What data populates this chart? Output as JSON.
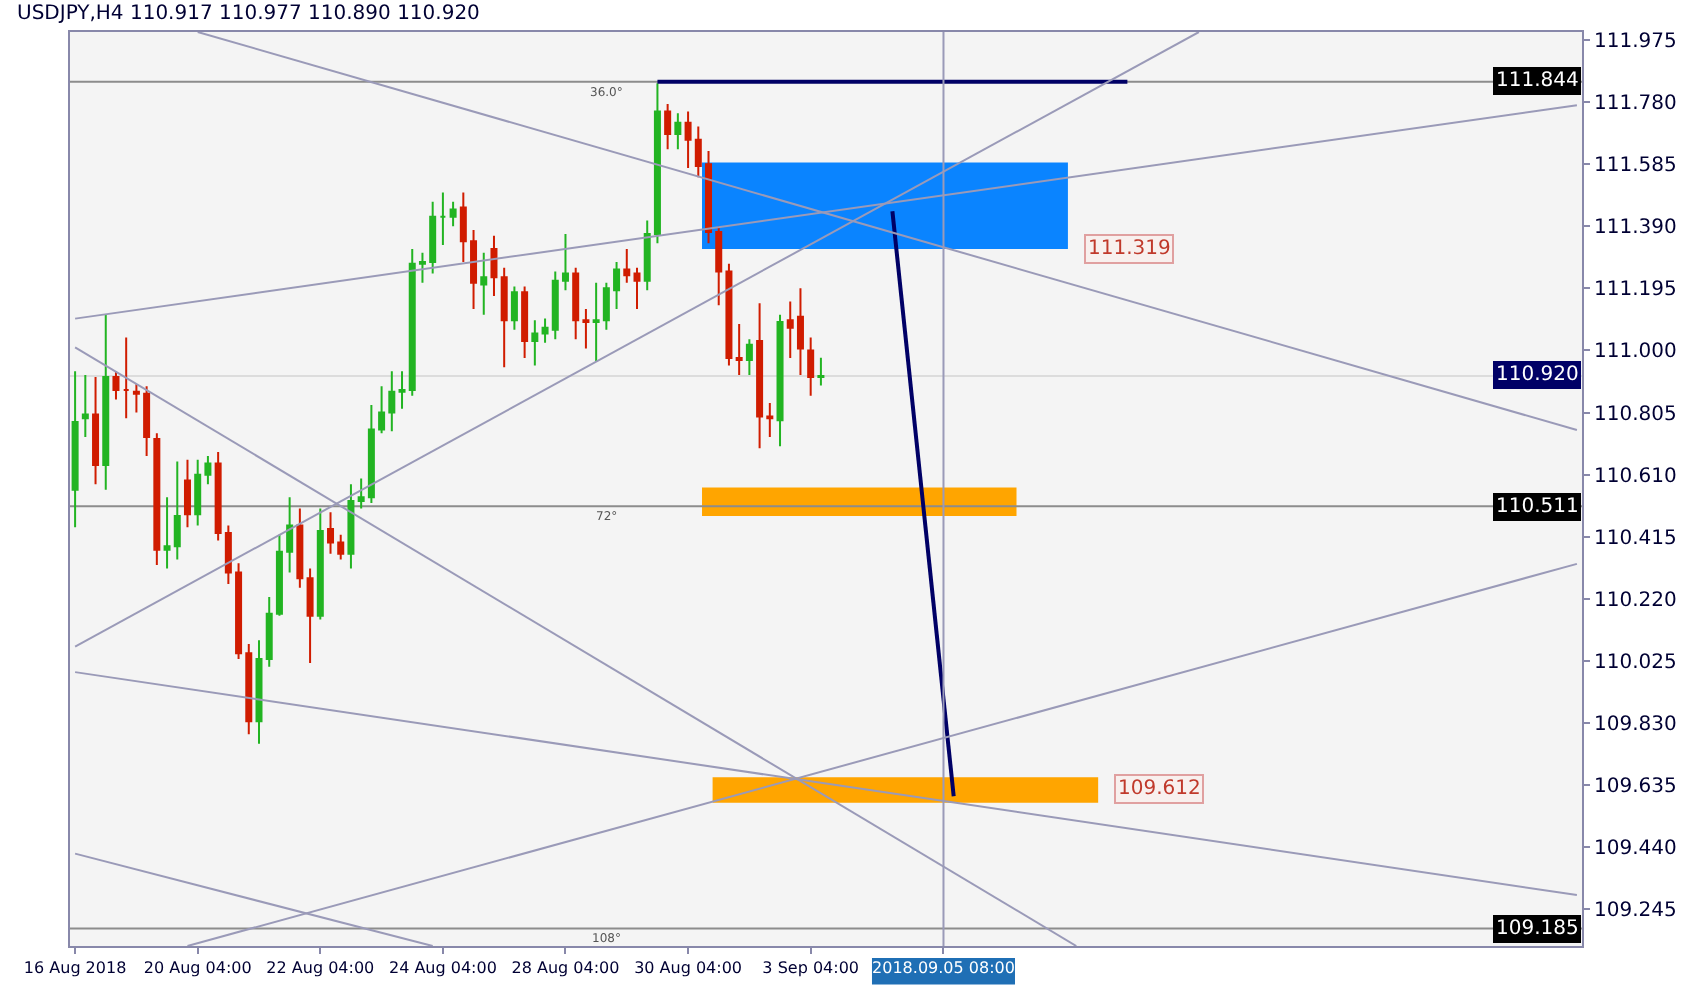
{
  "chart_data": {
    "type": "candlestick",
    "title": "USDJPY,H4 110.917 110.977 110.890 110.920",
    "categories": [
      "16 Aug 2018",
      null,
      null,
      null,
      null,
      null,
      null,
      null,
      null,
      null,
      null,
      null,
      "20 Aug 04:00",
      null,
      null,
      null,
      null,
      null,
      null,
      null,
      null,
      null,
      null,
      null,
      "22 Aug 04:00",
      null,
      null,
      null,
      null,
      null,
      null,
      null,
      null,
      null,
      null,
      null,
      "24 Aug 04:00",
      null,
      null,
      null,
      null,
      null,
      null,
      null,
      null,
      null,
      null,
      null,
      "28 Aug 04:00",
      null,
      null,
      null,
      null,
      null,
      null,
      null,
      null,
      null,
      null,
      null,
      "30 Aug 04:00",
      null,
      null,
      null,
      null,
      null,
      null,
      null,
      null,
      null,
      null,
      null,
      "3 Sep 04:00",
      null,
      null,
      null,
      null,
      null,
      null,
      null,
      null,
      null,
      null,
      null,
      null,
      "2018.09.05 08:00",
      null,
      null,
      null,
      null,
      null,
      null,
      null,
      null,
      null,
      null,
      null,
      null,
      null,
      null,
      null,
      null,
      null,
      null,
      null,
      null,
      null,
      null,
      null,
      null,
      null,
      null,
      null,
      null,
      null,
      null,
      null,
      null,
      null,
      null,
      null,
      null,
      null,
      null,
      null,
      null,
      null,
      null,
      null,
      null,
      null,
      null,
      null,
      null,
      null,
      null,
      null,
      null,
      null,
      null,
      null,
      null,
      null,
      null,
      null,
      null,
      null,
      null
    ],
    "ohlc": [
      [
        110.563,
        110.935,
        110.445,
        110.775
      ],
      [
        110.787,
        110.923,
        110.728,
        110.799
      ],
      [
        110.799,
        110.917,
        110.58,
        110.64
      ],
      [
        110.64,
        111.112,
        110.563,
        110.917
      ],
      [
        110.917,
        110.935,
        110.846,
        110.876
      ],
      [
        110.876,
        111.041,
        110.787,
        110.876
      ],
      [
        110.87,
        110.894,
        110.805,
        110.864
      ],
      [
        110.864,
        110.888,
        110.669,
        110.728
      ],
      [
        110.722,
        110.74,
        110.326,
        110.374
      ],
      [
        110.374,
        110.539,
        110.315,
        110.385
      ],
      [
        110.385,
        110.651,
        110.344,
        110.48
      ],
      [
        110.592,
        110.657,
        110.445,
        110.486
      ],
      [
        110.486,
        110.657,
        110.45,
        110.61
      ],
      [
        110.61,
        110.669,
        110.58,
        110.645
      ],
      [
        110.645,
        110.681,
        110.403,
        110.427
      ],
      [
        110.427,
        110.45,
        110.267,
        110.303
      ],
      [
        110.303,
        110.332,
        110.031,
        110.049
      ],
      [
        110.049,
        110.078,
        109.795,
        109.836
      ],
      [
        109.836,
        110.09,
        109.765,
        110.031
      ],
      [
        110.031,
        110.226,
        110.007,
        110.173
      ],
      [
        110.173,
        110.421,
        110.167,
        110.368
      ],
      [
        110.368,
        110.539,
        110.303,
        110.45
      ],
      [
        110.45,
        110.504,
        110.255,
        110.285
      ],
      [
        110.285,
        110.315,
        110.019,
        110.167
      ],
      [
        110.167,
        110.504,
        110.155,
        110.433
      ],
      [
        110.439,
        110.492,
        110.362,
        110.397
      ],
      [
        110.397,
        110.421,
        110.344,
        110.362
      ],
      [
        110.362,
        110.58,
        110.315,
        110.527
      ],
      [
        110.527,
        110.598,
        110.504,
        110.539
      ],
      [
        110.539,
        110.829,
        110.521,
        110.752
      ],
      [
        110.752,
        110.888,
        110.74,
        110.805
      ],
      [
        110.805,
        110.935,
        110.746,
        110.87
      ],
      [
        110.87,
        110.935,
        110.817,
        110.876
      ],
      [
        110.876,
        111.319,
        110.858,
        111.272
      ],
      [
        111.272,
        111.307,
        111.213,
        111.278
      ],
      [
        111.278,
        111.467,
        111.242,
        111.42
      ],
      [
        111.42,
        111.496,
        111.331,
        111.42
      ],
      [
        111.42,
        111.467,
        111.39,
        111.443
      ],
      [
        111.449,
        111.496,
        111.278,
        111.343
      ],
      [
        111.343,
        111.378,
        111.13,
        111.213
      ],
      [
        111.207,
        111.307,
        111.112,
        111.23
      ],
      [
        111.319,
        111.36,
        111.171,
        111.23
      ],
      [
        111.23,
        111.26,
        110.947,
        111.095
      ],
      [
        111.095,
        111.201,
        111.065,
        111.183
      ],
      [
        111.183,
        111.201,
        110.976,
        111.03
      ],
      [
        111.03,
        111.095,
        110.953,
        111.053
      ],
      [
        111.053,
        111.1,
        111.024,
        111.071
      ],
      [
        111.065,
        111.248,
        111.035,
        111.219
      ],
      [
        111.219,
        111.366,
        111.189,
        111.242
      ],
      [
        111.242,
        111.26,
        111.035,
        111.095
      ],
      [
        111.095,
        111.13,
        111.006,
        111.089
      ],
      [
        111.089,
        111.213,
        110.965,
        111.095
      ],
      [
        111.095,
        111.213,
        111.065,
        111.195
      ],
      [
        111.189,
        111.278,
        111.13,
        111.254
      ],
      [
        111.254,
        111.319,
        111.213,
        111.236
      ],
      [
        111.242,
        111.26,
        111.13,
        111.219
      ],
      [
        111.219,
        111.408,
        111.189,
        111.366
      ],
      [
        111.366,
        111.839,
        111.337,
        111.75
      ],
      [
        111.75,
        111.774,
        111.632,
        111.68
      ],
      [
        111.68,
        111.745,
        111.632,
        111.715
      ],
      [
        111.715,
        111.75,
        111.573,
        111.662
      ],
      [
        111.662,
        111.703,
        111.544,
        111.579
      ],
      [
        111.585,
        111.626,
        111.337,
        111.372
      ],
      [
        111.372,
        111.39,
        111.142,
        111.248
      ],
      [
        111.248,
        111.272,
        110.953,
        110.976
      ],
      [
        110.976,
        111.083,
        110.923,
        110.97
      ],
      [
        110.97,
        111.035,
        110.923,
        111.018
      ],
      [
        111.03,
        111.148,
        110.693,
        110.793
      ],
      [
        110.793,
        110.835,
        110.728,
        110.787
      ],
      [
        110.781,
        111.112,
        110.699,
        111.089
      ],
      [
        111.095,
        111.154,
        110.976,
        111.071
      ],
      [
        111.106,
        111.195,
        110.923,
        111.006
      ],
      [
        111.0,
        111.041,
        110.858,
        110.917
      ],
      [
        110.917,
        110.977,
        110.89,
        110.92
      ],
      null,
      null,
      null,
      null,
      null,
      null,
      null,
      null,
      null,
      null,
      null,
      null,
      null,
      null,
      null,
      null,
      null,
      null,
      null,
      null,
      null,
      null,
      null,
      null,
      null,
      null,
      null,
      null,
      null,
      null,
      null,
      null,
      null,
      null,
      null,
      null,
      null,
      null,
      null,
      null,
      null,
      null,
      null,
      null,
      null,
      null,
      null,
      null,
      null,
      null,
      null,
      null,
      null,
      null,
      null,
      null,
      null,
      null,
      null,
      null,
      null,
      null,
      null,
      null,
      null,
      null,
      null,
      null,
      null,
      null,
      null,
      null,
      null,
      null
    ],
    "colors": [
      "#22b422",
      "#22b422",
      "#d01c00",
      "#22b422",
      "#d01c00",
      "#d01c00",
      "#d01c00",
      "#d01c00",
      "#d01c00",
      "#22b422",
      "#22b422",
      "#d01c00",
      "#22b422",
      "#22b422",
      "#d01c00",
      "#d01c00",
      "#d01c00",
      "#d01c00",
      "#22b422",
      "#22b422",
      "#22b422",
      "#22b422",
      "#d01c00",
      "#d01c00",
      "#22b422",
      "#d01c00",
      "#d01c00",
      "#22b422",
      "#22b422",
      "#22b422",
      "#22b422",
      "#22b422",
      "#22b422",
      "#22b422",
      "#22b422",
      "#22b422",
      "#22b422",
      "#22b422",
      "#d01c00",
      "#d01c00",
      "#22b422",
      "#d01c00",
      "#d01c00",
      "#22b422",
      "#d01c00",
      "#22b422",
      "#22b422",
      "#22b422",
      "#22b422",
      "#d01c00",
      "#d01c00",
      "#22b422",
      "#22b422",
      "#22b422",
      "#d01c00",
      "#d01c00",
      "#22b422",
      "#22b422",
      "#d01c00",
      "#22b422",
      "#d01c00",
      "#d01c00",
      "#d01c00",
      "#d01c00",
      "#d01c00",
      "#d01c00",
      "#22b422",
      "#d01c00",
      "#d01c00",
      "#22b422",
      "#d01c00",
      "#d01c00",
      "#d01c00",
      "#22b422",
      null,
      null,
      null,
      null,
      null,
      null,
      null,
      null,
      null,
      null,
      null,
      null,
      null,
      null,
      null,
      null,
      null,
      null,
      null,
      null,
      null,
      null,
      null,
      null,
      null,
      null,
      null,
      null,
      null,
      null,
      null,
      null,
      null,
      null,
      null,
      null,
      null,
      null,
      null,
      null,
      null,
      null,
      null,
      null,
      null,
      null,
      null,
      null,
      null,
      null,
      null,
      null,
      null,
      null,
      null,
      null,
      null,
      null,
      null,
      null,
      null,
      null,
      null,
      null,
      null,
      null,
      null,
      null,
      null,
      null,
      null,
      null,
      null,
      null
    ],
    "series": [
      {
        "type": "line",
        "color": "#000066",
        "values": [
          null,
          null,
          null,
          null,
          null,
          null,
          null,
          null,
          null,
          null,
          null,
          null,
          null,
          null,
          null,
          null,
          null,
          null,
          null,
          null,
          null,
          null,
          null,
          null,
          null,
          null,
          null,
          null,
          null,
          null,
          null,
          null,
          null,
          null,
          null,
          null,
          null,
          null,
          null,
          null,
          null,
          null,
          null,
          null,
          null,
          null,
          null,
          null,
          null,
          null,
          null,
          null,
          null,
          null,
          null,
          null,
          null,
          null,
          null,
          null,
          null,
          null,
          null,
          null,
          null,
          null,
          null,
          null,
          null,
          null,
          null,
          null,
          null,
          null,
          null,
          null,
          null,
          null,
          null,
          null,
          111.437,
          null,
          null,
          null,
          null,
          null,
          109.6,
          null,
          null,
          null,
          null,
          null,
          null,
          null,
          null,
          null,
          null,
          null,
          null,
          null,
          null,
          null,
          null,
          null,
          null,
          null,
          null,
          null,
          null,
          null,
          null,
          null,
          null,
          null,
          null,
          null,
          null,
          null,
          null,
          null,
          null,
          null,
          null,
          null,
          null,
          null,
          null,
          null,
          null,
          null,
          null,
          null,
          null,
          null,
          null,
          null,
          null,
          null,
          null,
          null,
          null,
          null,
          null,
          null,
          null,
          null,
          null,
          null
        ]
      },
      {
        "type": "line",
        "color": "#000066",
        "values": [
          null,
          null,
          null,
          null,
          null,
          null,
          null,
          null,
          null,
          null,
          null,
          null,
          null,
          null,
          null,
          null,
          null,
          null,
          null,
          null,
          null,
          null,
          null,
          null,
          null,
          null,
          null,
          null,
          null,
          null,
          null,
          null,
          null,
          null,
          null,
          null,
          null,
          null,
          null,
          null,
          null,
          null,
          null,
          null,
          null,
          null,
          null,
          null,
          null,
          null,
          null,
          null,
          null,
          null,
          null,
          null,
          null,
          111.844,
          null,
          null,
          null,
          null,
          null,
          null,
          null,
          null,
          null,
          null,
          null,
          null,
          null,
          null,
          null,
          null,
          null,
          null,
          null,
          null,
          null,
          null,
          null,
          null,
          null,
          null,
          null,
          null,
          null,
          null,
          null,
          null,
          null,
          null,
          null,
          null,
          null,
          null,
          null,
          null,
          null,
          null,
          null,
          null,
          null,
          111.844,
          null,
          null,
          null,
          null,
          null,
          null,
          null,
          null,
          null,
          null,
          null,
          null,
          null,
          null,
          null,
          null,
          null,
          null,
          null,
          null,
          null,
          null,
          null,
          null,
          null,
          null,
          null,
          null,
          null,
          null,
          null,
          null,
          null,
          null,
          null,
          null,
          null,
          null,
          null,
          null,
          null,
          null,
          null,
          null
        ]
      },
      {
        "type": "line",
        "color": "#9a9ab8",
        "values": [
          111.1,
          null,
          null,
          null,
          null,
          null,
          null,
          null,
          null,
          null,
          null,
          null,
          null,
          null,
          null,
          null,
          null,
          null,
          null,
          null,
          null,
          null,
          null,
          null,
          null,
          null,
          null,
          null,
          null,
          null,
          null,
          null,
          null,
          null,
          null,
          null,
          null,
          null,
          null,
          null,
          null,
          null,
          null,
          null,
          null,
          null,
          null,
          null,
          null,
          null,
          null,
          null,
          null,
          null,
          null,
          null,
          null,
          null,
          null,
          null,
          null,
          null,
          null,
          null,
          null,
          null,
          null,
          null,
          null,
          null,
          null,
          null,
          null,
          null,
          null,
          null,
          null,
          null,
          null,
          null,
          null,
          null,
          null,
          null,
          null,
          null,
          null,
          null,
          null,
          null,
          null,
          null,
          null,
          null,
          null,
          null,
          null,
          null,
          null,
          null,
          null,
          null,
          null,
          null,
          null,
          null,
          null,
          null,
          null,
          null,
          null,
          null,
          null,
          null,
          null,
          null,
          null,
          null,
          null,
          null,
          null,
          null,
          null,
          null,
          null,
          null,
          null,
          null,
          null,
          null,
          null,
          null,
          null,
          null,
          null,
          null,
          null,
          null,
          null,
          null,
          null,
          null,
          null,
          null,
          null,
          null,
          null,
          111.77
        ]
      },
      {
        "type": "line",
        "color": "#9a9ab8",
        "values": [
          null,
          null,
          null,
          null,
          null,
          null,
          null,
          null,
          null,
          null,
          null,
          null,
          112.0,
          null,
          null,
          null,
          null,
          null,
          null,
          null,
          null,
          null,
          null,
          null,
          null,
          null,
          null,
          null,
          null,
          null,
          null,
          null,
          null,
          null,
          null,
          null,
          null,
          null,
          null,
          null,
          null,
          null,
          null,
          null,
          null,
          null,
          null,
          null,
          null,
          null,
          null,
          null,
          null,
          null,
          null,
          null,
          null,
          null,
          null,
          null,
          null,
          null,
          null,
          null,
          null,
          null,
          null,
          null,
          null,
          null,
          null,
          null,
          null,
          null,
          null,
          null,
          null,
          null,
          null,
          null,
          null,
          null,
          null,
          null,
          null,
          null,
          null,
          null,
          null,
          null,
          null,
          null,
          null,
          null,
          null,
          null,
          null,
          null,
          null,
          null,
          null,
          null,
          null,
          null,
          null,
          null,
          null,
          null,
          null,
          null,
          null,
          null,
          null,
          null,
          null,
          null,
          null,
          null,
          null,
          null,
          null,
          null,
          null,
          null,
          null,
          null,
          null,
          null,
          null,
          null,
          null,
          null,
          null,
          null,
          null,
          null,
          null,
          null,
          null,
          null,
          null,
          null,
          null,
          null,
          null,
          null,
          null,
          110.75
        ]
      },
      {
        "type": "line",
        "color": "#9a9ab8",
        "values": [
          111.01,
          null,
          null,
          null,
          null,
          null,
          null,
          null,
          null,
          null,
          null,
          null,
          null,
          null,
          null,
          null,
          null,
          null,
          null,
          null,
          null,
          null,
          null,
          null,
          null,
          null,
          null,
          null,
          null,
          null,
          null,
          null,
          null,
          null,
          null,
          null,
          null,
          null,
          null,
          null,
          null,
          null,
          null,
          null,
          null,
          null,
          null,
          null,
          null,
          null,
          null,
          null,
          null,
          null,
          null,
          null,
          null,
          null,
          null,
          null,
          null,
          null,
          null,
          null,
          null,
          null,
          null,
          null,
          null,
          null,
          null,
          null,
          null,
          null,
          null,
          null,
          null,
          null,
          null,
          null,
          null,
          null,
          null,
          null,
          null,
          null,
          null,
          null,
          null,
          null,
          null,
          null,
          null,
          null,
          null,
          null,
          null,
          null,
          109.13,
          null,
          null,
          null,
          null,
          null,
          null,
          null,
          null,
          null,
          null,
          null,
          null,
          null,
          null,
          null,
          null,
          null,
          null,
          null,
          null,
          null,
          null,
          null,
          null,
          null,
          null,
          null,
          null,
          null,
          null,
          null,
          null,
          null,
          null,
          null,
          null,
          null,
          null,
          null,
          null,
          null,
          null,
          null,
          null,
          null,
          null,
          null,
          null,
          null
        ]
      },
      {
        "type": "line",
        "color": "#9a9ab8",
        "values": [
          110.07,
          null,
          null,
          null,
          null,
          null,
          null,
          null,
          null,
          null,
          null,
          null,
          null,
          null,
          null,
          null,
          null,
          null,
          null,
          null,
          null,
          null,
          null,
          null,
          null,
          null,
          null,
          null,
          null,
          null,
          null,
          null,
          null,
          null,
          null,
          null,
          null,
          null,
          null,
          null,
          null,
          null,
          null,
          null,
          null,
          null,
          null,
          null,
          null,
          null,
          null,
          null,
          null,
          null,
          null,
          null,
          null,
          null,
          null,
          null,
          null,
          null,
          null,
          null,
          null,
          null,
          null,
          null,
          null,
          null,
          null,
          null,
          null,
          null,
          null,
          null,
          null,
          null,
          null,
          null,
          null,
          null,
          null,
          null,
          null,
          null,
          null,
          null,
          null,
          null,
          null,
          null,
          null,
          null,
          null,
          null,
          null,
          null,
          null,
          null,
          null,
          null,
          null,
          null,
          null,
          null,
          null,
          null,
          null,
          null,
          112.0,
          null,
          null,
          null,
          null,
          null,
          null,
          null,
          null,
          null,
          null,
          null,
          null,
          null,
          null,
          null,
          null,
          null,
          null,
          null,
          null,
          null,
          null,
          null,
          null,
          null,
          null,
          null,
          null,
          null,
          null,
          null,
          null,
          null,
          null,
          null,
          null,
          null
        ]
      },
      {
        "type": "line",
        "color": "#9a9ab8",
        "values": [
          null,
          null,
          null,
          null,
          null,
          null,
          null,
          null,
          null,
          null,
          null,
          109.13,
          null,
          null,
          null,
          null,
          null,
          null,
          null,
          null,
          null,
          null,
          null,
          null,
          null,
          null,
          null,
          null,
          null,
          null,
          null,
          null,
          null,
          null,
          null,
          null,
          null,
          null,
          null,
          null,
          null,
          null,
          null,
          null,
          null,
          null,
          null,
          null,
          null,
          null,
          null,
          null,
          null,
          null,
          null,
          null,
          null,
          null,
          null,
          null,
          null,
          null,
          null,
          null,
          null,
          null,
          null,
          null,
          null,
          null,
          null,
          null,
          null,
          null,
          null,
          null,
          null,
          null,
          null,
          null,
          null,
          null,
          null,
          null,
          null,
          null,
          null,
          null,
          null,
          null,
          null,
          null,
          null,
          null,
          null,
          null,
          null,
          null,
          null,
          null,
          null,
          null,
          null,
          null,
          null,
          null,
          null,
          null,
          null,
          null,
          null,
          null,
          null,
          null,
          null,
          null,
          null,
          null,
          null,
          null,
          null,
          null,
          null,
          null,
          null,
          null,
          null,
          null,
          null,
          null,
          null,
          null,
          null,
          null,
          null,
          null,
          null,
          null,
          null,
          null,
          null,
          null,
          null,
          null,
          null,
          null,
          null,
          110.33
        ]
      },
      {
        "type": "line",
        "color": "#9a9ab8",
        "values": [
          109.99,
          null,
          null,
          null,
          null,
          null,
          null,
          null,
          null,
          null,
          null,
          null,
          null,
          null,
          null,
          null,
          null,
          null,
          null,
          null,
          null,
          null,
          null,
          null,
          null,
          null,
          null,
          null,
          null,
          null,
          null,
          null,
          null,
          null,
          null,
          null,
          null,
          null,
          null,
          null,
          null,
          null,
          null,
          null,
          null,
          null,
          null,
          null,
          null,
          null,
          null,
          null,
          null,
          null,
          null,
          null,
          null,
          null,
          null,
          null,
          null,
          null,
          null,
          null,
          null,
          null,
          null,
          null,
          null,
          null,
          null,
          null,
          null,
          null,
          null,
          null,
          null,
          null,
          null,
          null,
          null,
          null,
          null,
          null,
          null,
          null,
          null,
          null,
          null,
          null,
          null,
          null,
          null,
          null,
          null,
          null,
          null,
          null,
          null,
          null,
          null,
          null,
          null,
          null,
          null,
          null,
          null,
          null,
          null,
          null,
          null,
          null,
          null,
          null,
          null,
          null,
          null,
          null,
          null,
          null,
          null,
          null,
          null,
          null,
          null,
          null,
          null,
          null,
          null,
          null,
          null,
          null,
          null,
          null,
          null,
          null,
          null,
          null,
          null,
          null,
          null,
          null,
          null,
          null,
          null,
          null,
          null,
          109.29
        ]
      },
      {
        "type": "line",
        "color": "#9a9ab8",
        "values": [
          109.42,
          null,
          null,
          null,
          null,
          null,
          null,
          null,
          null,
          null,
          null,
          null,
          null,
          null,
          null,
          null,
          null,
          null,
          null,
          null,
          null,
          null,
          null,
          null,
          null,
          null,
          null,
          null,
          null,
          null,
          null,
          null,
          null,
          null,
          null,
          109.13,
          null,
          null,
          null,
          null,
          null,
          null,
          null,
          null,
          null,
          null,
          null,
          null,
          null,
          null,
          null,
          null,
          null,
          null,
          null,
          null,
          null,
          null,
          null,
          null,
          null,
          null,
          null,
          null,
          null,
          null,
          null,
          null,
          null,
          null,
          null,
          null,
          null,
          null,
          null,
          null,
          null,
          null,
          null,
          null,
          null,
          null,
          null,
          null,
          null,
          null,
          null,
          null,
          null,
          null,
          null,
          null,
          null,
          null,
          null,
          null,
          null,
          null,
          null,
          null,
          null,
          null,
          null,
          null,
          null,
          null,
          null,
          null,
          null,
          null,
          null,
          null,
          null,
          null,
          null,
          null,
          null,
          null,
          null,
          null,
          null,
          null,
          null,
          null,
          null,
          null,
          null,
          null,
          null,
          null,
          null,
          null,
          null,
          null,
          null,
          null,
          null,
          null,
          null,
          null,
          null,
          null,
          null,
          null,
          null,
          null,
          null,
          null
        ]
      }
    ],
    "ylim": [
      109.13,
      112.0
    ],
    "yticks": [
      {
        "value": 111.975,
        "label": "111.975"
      },
      {
        "value": 111.78,
        "label": "111.780"
      },
      {
        "value": 111.585,
        "label": "111.585"
      },
      {
        "value": 111.39,
        "label": "111.390"
      },
      {
        "value": 111.195,
        "label": "111.195"
      },
      {
        "value": 111.0,
        "label": "111.000"
      },
      {
        "value": 110.805,
        "label": "110.805"
      },
      {
        "value": 110.61,
        "label": "110.610"
      },
      {
        "value": 110.415,
        "label": "110.415"
      },
      {
        "value": 110.22,
        "label": "110.220"
      },
      {
        "value": 110.025,
        "label": "110.025"
      },
      {
        "value": 109.83,
        "label": "109.830"
      },
      {
        "value": 109.635,
        "label": "109.635"
      },
      {
        "value": 109.44,
        "label": "109.440"
      },
      {
        "value": 109.245,
        "label": "109.245"
      }
    ],
    "ref_lines": [
      {
        "axis": "y",
        "value": 111.844,
        "label": "111.844",
        "color": "#8c8c8c"
      },
      {
        "axis": "y",
        "value": 110.92,
        "label": "110.920",
        "color": "#dcdcdc"
      },
      {
        "axis": "y",
        "value": 110.511,
        "label": "110.511",
        "color": "#8c8c8c"
      },
      {
        "axis": "y",
        "value": 109.185,
        "label": "109.185",
        "color": "#8c8c8c"
      },
      {
        "axis": "x",
        "value": "2018.09.05 08:00",
        "color": "#9a9ab8"
      }
    ],
    "bands": [
      {
        "axis": "y",
        "from": 111.319,
        "to": 111.59,
        "label": "111.319",
        "color": "#0a84ff"
      },
      {
        "axis": "y",
        "from": 110.48,
        "to": 110.57,
        "color": "#ffa500"
      },
      {
        "axis": "y",
        "from": 109.58,
        "to": 109.66,
        "label": "109.612",
        "color": "#ffa500"
      }
    ],
    "annotations": [
      {
        "text": "36.0°",
        "y": 111.844
      },
      {
        "text": "72°",
        "y": 110.511
      },
      {
        "text": "108°",
        "y": 109.185
      }
    ],
    "grid": false
  }
}
